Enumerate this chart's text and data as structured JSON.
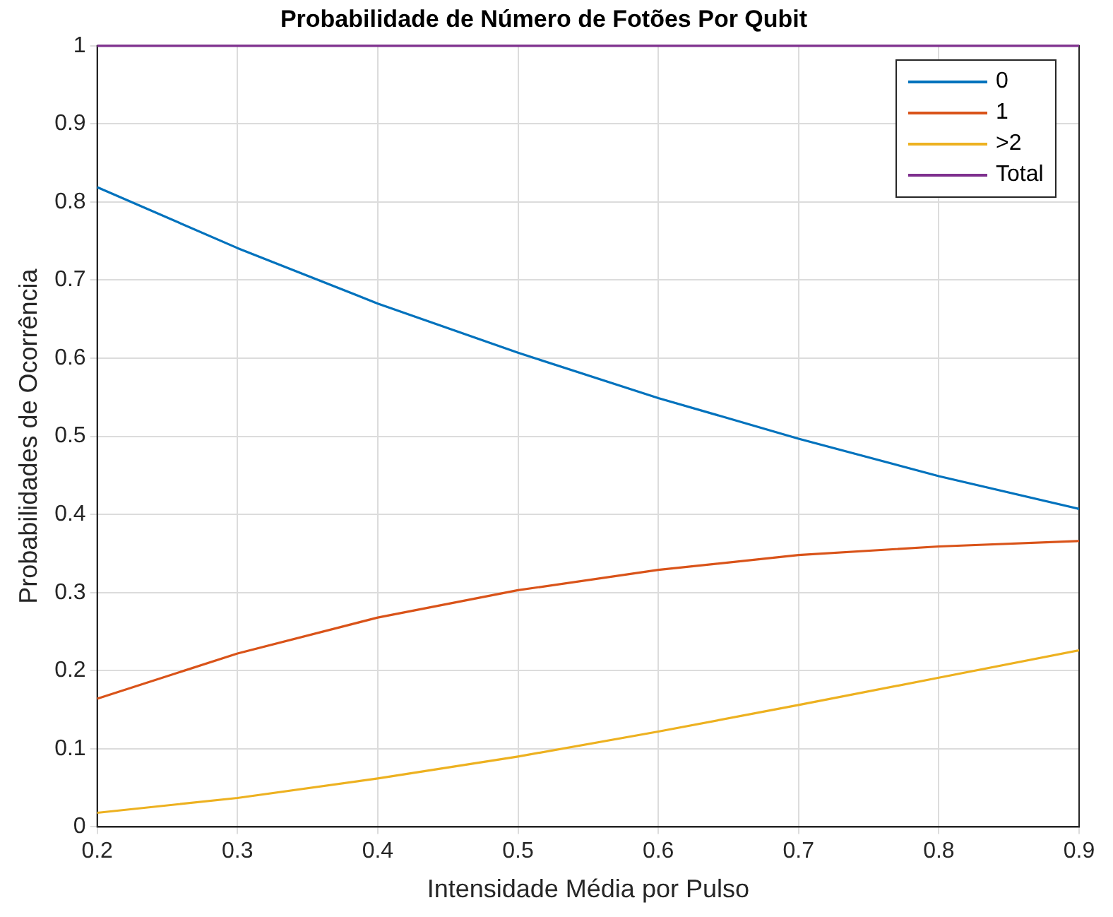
{
  "chart_data": {
    "type": "line",
    "title": "Probabilidade de Número de Fotões Por Qubit",
    "xlabel": "Intensidade Média por Pulso",
    "ylabel": "Probabilidades de Ocorrência",
    "x": [
      0.2,
      0.3,
      0.4,
      0.5,
      0.6,
      0.7,
      0.8,
      0.9
    ],
    "series": [
      {
        "name": "0",
        "color": "#0072bd",
        "values": [
          0.819,
          0.741,
          0.67,
          0.607,
          0.549,
          0.497,
          0.449,
          0.407
        ]
      },
      {
        "name": "1",
        "color": "#d95319",
        "values": [
          0.164,
          0.222,
          0.268,
          0.303,
          0.329,
          0.348,
          0.359,
          0.366
        ]
      },
      {
        "name": ">2",
        "color": "#edb120",
        "values": [
          0.018,
          0.037,
          0.062,
          0.09,
          0.122,
          0.156,
          0.191,
          0.226
        ]
      },
      {
        "name": "Total",
        "color": "#7e2f8e",
        "values": [
          1,
          1,
          1,
          1,
          1,
          1,
          1,
          1
        ]
      }
    ],
    "xlim": [
      0.2,
      0.9
    ],
    "xticks": [
      0.2,
      0.3,
      0.4,
      0.5,
      0.6,
      0.7,
      0.8,
      0.9
    ],
    "ylim": [
      0,
      1
    ],
    "yticks": [
      0,
      0.1,
      0.2,
      0.3,
      0.4,
      0.5,
      0.6,
      0.7,
      0.8,
      0.9,
      1
    ],
    "grid": true,
    "legend": "top right",
    "marker": "none",
    "line_style": "solid"
  }
}
